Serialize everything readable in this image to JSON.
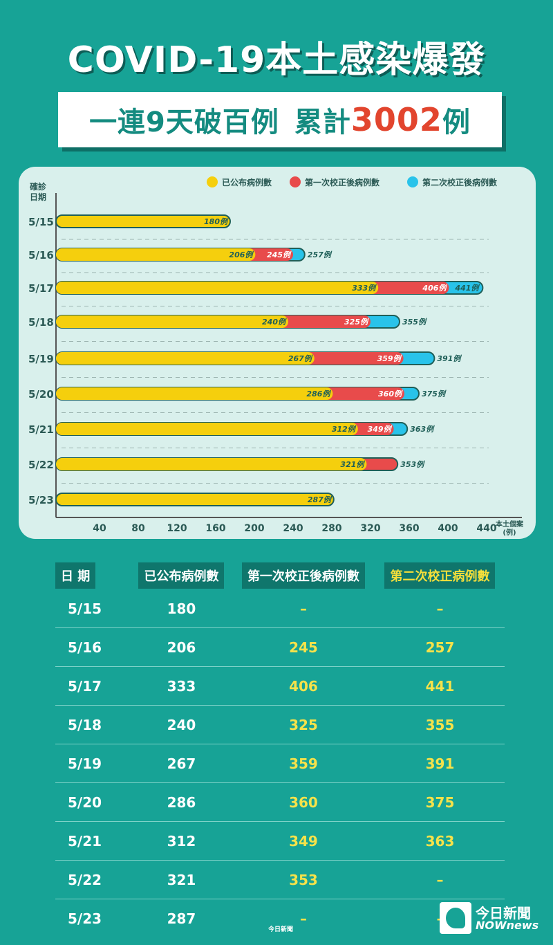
{
  "title": "COVID-19本土感染爆發",
  "subtitle": {
    "part1": "一連9天破百例",
    "part2": "累計",
    "highlight": "3002",
    "part3": "例"
  },
  "chart_data": {
    "type": "bar",
    "orientation": "horizontal-stacked",
    "y_axis_label": [
      "確診",
      "日期"
    ],
    "x_axis_label": [
      "本土個案",
      "(例)"
    ],
    "x_ticks": [
      40,
      80,
      120,
      160,
      200,
      240,
      280,
      320,
      360,
      400,
      440
    ],
    "legend_position": "top-right",
    "label_suffix": "例",
    "categories": [
      "5/15",
      "5/16",
      "5/17",
      "5/18",
      "5/19",
      "5/20",
      "5/21",
      "5/22",
      "5/23"
    ],
    "series": [
      {
        "name": "已公布病例數",
        "color": "#f5cf0d",
        "values": [
          180,
          206,
          333,
          240,
          267,
          286,
          312,
          321,
          287
        ]
      },
      {
        "name": "第一次校正後病例數",
        "color": "#e84b4b",
        "values": [
          null,
          245,
          406,
          325,
          359,
          360,
          349,
          353,
          null
        ]
      },
      {
        "name": "第二次校正後病例數",
        "color": "#29c3ea",
        "values": [
          null,
          257,
          441,
          355,
          391,
          375,
          363,
          null,
          null
        ]
      }
    ]
  },
  "table": {
    "headers": [
      "日 期",
      "已公布病例數",
      "第一次校正後病例數",
      "第二次校正病例數"
    ],
    "rows": [
      [
        "5/15",
        "180",
        "–",
        "–"
      ],
      [
        "5/16",
        "206",
        "245",
        "257"
      ],
      [
        "5/17",
        "333",
        "406",
        "441"
      ],
      [
        "5/18",
        "240",
        "325",
        "355"
      ],
      [
        "5/19",
        "267",
        "359",
        "391"
      ],
      [
        "5/20",
        "286",
        "360",
        "375"
      ],
      [
        "5/21",
        "312",
        "349",
        "363"
      ],
      [
        "5/22",
        "321",
        "353",
        "–"
      ],
      [
        "5/23",
        "287",
        "–",
        "–"
      ]
    ]
  },
  "footer": {
    "small_logo": "今日新聞",
    "brand_cn": "今日新聞",
    "brand_en": "NOWnews"
  },
  "colors": {
    "background": "#17a396",
    "panel": "#d9f0ec",
    "highlight": "#e2452e",
    "header_cell": "#0f766c",
    "accent_yellow": "#f6df3a"
  }
}
